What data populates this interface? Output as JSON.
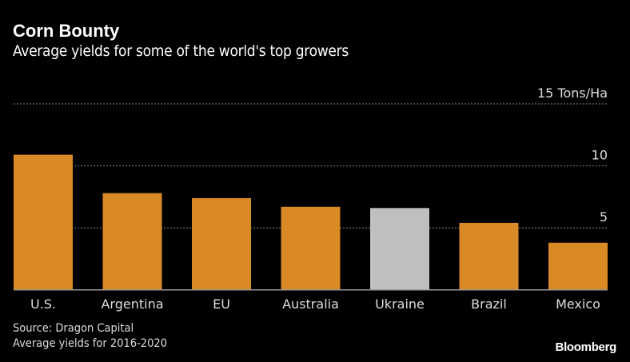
{
  "chart_data": {
    "type": "bar",
    "title": "Corn Bounty",
    "subtitle": "Average yields for some of the world's top growers",
    "categories": [
      "U.S.",
      "Argentina",
      "EU",
      "Australia",
      "Ukraine",
      "Brazil",
      "Mexico"
    ],
    "values": [
      10.9,
      7.8,
      7.4,
      6.7,
      6.6,
      5.4,
      3.8
    ],
    "unit": "Tons/Ha",
    "ylim": [
      0,
      15
    ],
    "yticks": [
      0,
      5,
      10,
      15
    ],
    "ytick_labels": [
      "0",
      "5",
      "10",
      "15 Tons/Ha"
    ],
    "grid": true,
    "highlight_category": "Ukraine",
    "colors": {
      "bar": "#d98a24",
      "highlight": "#bfbfbf",
      "grid": "#888888",
      "baseline": "#999999"
    }
  },
  "footer": {
    "source": "Source: Dragon Capital",
    "note": "Average yields for 2016-2020",
    "brand": "Bloomberg"
  }
}
